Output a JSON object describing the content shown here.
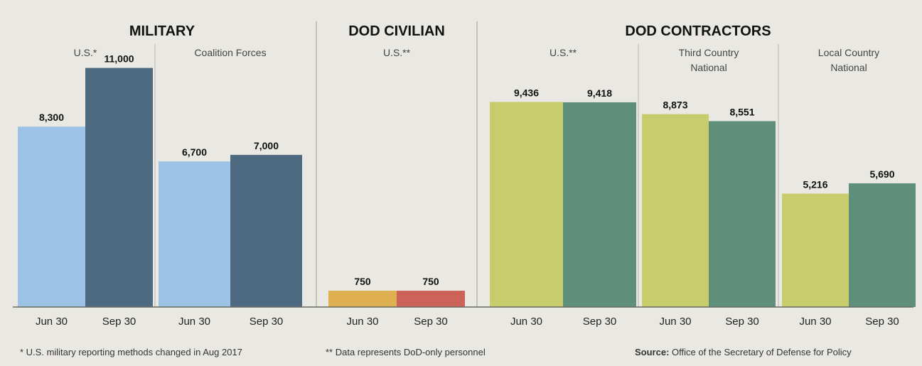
{
  "chart_data": {
    "type": "bar",
    "ylim": [
      0,
      12000
    ],
    "groups": [
      {
        "section": "MILITARY",
        "label": "U.S.*",
        "bars": [
          {
            "x": "Jun 30",
            "value": 8300,
            "label": "8,300",
            "color": "#9cc3e6"
          },
          {
            "x": "Sep 30",
            "value": 11000,
            "label": "11,000",
            "color": "#4d6a81"
          }
        ]
      },
      {
        "section": "MILITARY",
        "label": "Coalition Forces",
        "bars": [
          {
            "x": "Jun 30",
            "value": 6700,
            "label": "6,700",
            "color": "#9cc3e6"
          },
          {
            "x": "Sep 30",
            "value": 7000,
            "label": "7,000",
            "color": "#4d6a81"
          }
        ]
      },
      {
        "section": "DOD CIVILIAN",
        "label": "U.S.**",
        "bars": [
          {
            "x": "Jun 30",
            "value": 750,
            "label": "750",
            "color": "#dfb04f"
          },
          {
            "x": "Sep 30",
            "value": 750,
            "label": "750",
            "color": "#cd6258"
          }
        ]
      },
      {
        "section": "DOD CONTRACTORS",
        "label": "U.S.**",
        "bars": [
          {
            "x": "Jun 30",
            "value": 9436,
            "label": "9,436",
            "color": "#c7cd6c"
          },
          {
            "x": "Sep 30",
            "value": 9418,
            "label": "9,418",
            "color": "#5f8f7b"
          }
        ]
      },
      {
        "section": "DOD CONTRACTORS",
        "label": "Third Country National",
        "bars": [
          {
            "x": "Jun 30",
            "value": 8873,
            "label": "8,873",
            "color": "#c7cd6c"
          },
          {
            "x": "Sep 30",
            "value": 8551,
            "label": "8,551",
            "color": "#5f8f7b"
          }
        ]
      },
      {
        "section": "DOD CONTRACTORS",
        "label": "Local Country National",
        "bars": [
          {
            "x": "Jun 30",
            "value": 5216,
            "label": "5,216",
            "color": "#c7cd6c"
          },
          {
            "x": "Sep 30",
            "value": 5690,
            "label": "5,690",
            "color": "#5f8f7b"
          }
        ]
      }
    ],
    "sections": [
      "MILITARY",
      "DOD CIVILIAN",
      "DOD CONTRACTORS"
    ]
  },
  "footnotes": {
    "military": "* U.S. military reporting methods changed in Aug 2017",
    "dod": "** Data represents DoD-only personnel",
    "source_label": "Source:",
    "source_text": " Office of the Secretary of Defense for Policy"
  }
}
